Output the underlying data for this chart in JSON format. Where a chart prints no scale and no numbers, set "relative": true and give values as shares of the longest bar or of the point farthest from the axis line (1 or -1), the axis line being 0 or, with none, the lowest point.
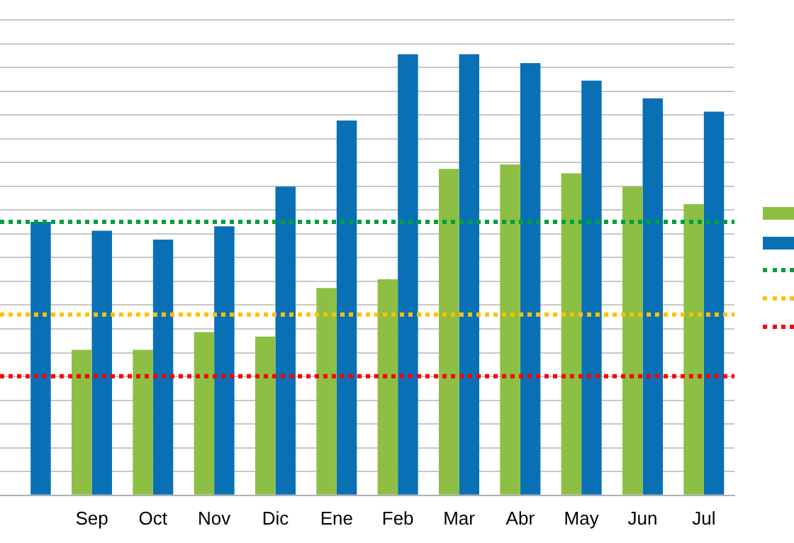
{
  "chart_data": {
    "type": "bar",
    "relative": true,
    "categories": [
      null,
      "Sep",
      "Oct",
      "Nov",
      "Dic",
      "Ene",
      "Feb",
      "Mar",
      "Abr",
      "May",
      "Jun",
      "Jul"
    ],
    "series": [
      {
        "color": "#8cbf44",
        "values": [
          null,
          0.33,
          0.33,
          0.37,
          0.36,
          0.47,
          0.49,
          0.74,
          0.75,
          0.73,
          0.7,
          0.66
        ]
      },
      {
        "color": "#0a70b5",
        "values": [
          0.62,
          0.6,
          0.58,
          0.61,
          0.7,
          0.85,
          1.0,
          1.0,
          0.98,
          0.94,
          0.9,
          0.87
        ]
      }
    ],
    "ref_lines": [
      {
        "axis": "y",
        "value": 0.62,
        "color": "#00a03c",
        "line_style": "dotted"
      },
      {
        "axis": "y",
        "value": 0.41,
        "color": "#ffc000",
        "line_style": "dotted"
      },
      {
        "axis": "y",
        "value": 0.27,
        "color": "#ff0000",
        "line_style": "dotted"
      }
    ],
    "grid": "y"
  }
}
